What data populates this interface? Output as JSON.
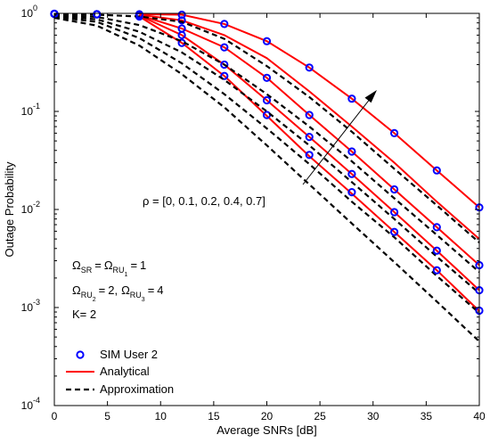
{
  "chart_data": {
    "type": "line",
    "xlabel": "Average SNRs [dB]",
    "ylabel": "Outage Probability",
    "xlim": [
      0,
      40
    ],
    "ylim": [
      0.0001,
      1
    ],
    "yscale": "log",
    "grid": false,
    "legend_position": "bottom-left",
    "x_ticks": [
      "0",
      "5",
      "10",
      "15",
      "20",
      "25",
      "30",
      "35",
      "40"
    ],
    "y_ticks": [
      {
        "base": "10",
        "exp": "0"
      },
      {
        "base": "10",
        "exp": "-1"
      },
      {
        "base": "10",
        "exp": "-2"
      },
      {
        "base": "10",
        "exp": "-3"
      },
      {
        "base": "10",
        "exp": "-4"
      }
    ],
    "legend": [
      {
        "label": "SIM User 2",
        "style": "marker",
        "color": "#0000ff"
      },
      {
        "label": "Analytical",
        "style": "solid",
        "color": "#ff0000"
      },
      {
        "label": "Approximation",
        "style": "dashed",
        "color": "#000000"
      }
    ],
    "annotations": {
      "rho": "ρ = [0, 0.1, 0.2, 0.4, 0.7]",
      "omega_line1": "Ω_SR = Ω_RU1 = 1",
      "omega_line2": "Ω_RU2 = 2, Ω_RU3 = 4",
      "k_line": "K= 2",
      "omega": {
        "sym": "Ω",
        "sub_sr": "SR",
        "eq": "=",
        "sub_ru": "RU",
        "sub_1": "1",
        "sub_2": "2",
        "sub_3": "3",
        "val1": "1",
        "val2": "2,",
        "val3": "4"
      }
    },
    "series": [
      {
        "rho": 0,
        "sim": {
          "x": [
            0,
            4,
            8,
            12
          ],
          "y": [
            0.99,
            0.98,
            0.93,
            0.5
          ]
        },
        "analytical": {
          "x": [
            8,
            12,
            16,
            20,
            24,
            28,
            32,
            36,
            40
          ],
          "y": [
            0.93,
            0.5,
            0.23,
            0.09,
            0.035,
            0.0145,
            0.0059,
            0.0024,
            0.00092
          ]
        },
        "approximation": {
          "x": [
            0,
            4,
            8,
            12,
            16,
            20,
            24,
            28,
            32,
            36,
            40
          ],
          "y": [
            0.9,
            0.75,
            0.47,
            0.24,
            0.11,
            0.045,
            0.018,
            0.0072,
            0.0029,
            0.00115,
            0.00045
          ]
        }
      },
      {
        "rho": 0.1,
        "sim": {
          "x": [
            0,
            4,
            8,
            12,
            16,
            20,
            24,
            28,
            32,
            36,
            40
          ],
          "y": [
            0.99,
            0.98,
            0.95,
            0.6,
            0.23,
            0.092,
            0.036,
            0.015,
            0.0059,
            0.0024,
            0.00093
          ]
        },
        "analytical": {
          "x": [
            8,
            12,
            16,
            20,
            24,
            28,
            32,
            36,
            40
          ],
          "y": [
            0.95,
            0.6,
            0.3,
            0.13,
            0.055,
            0.023,
            0.0094,
            0.0038,
            0.0015
          ]
        },
        "approximation": {
          "x": [
            0,
            4,
            8,
            12,
            16,
            20,
            24,
            28,
            32,
            36,
            40
          ],
          "y": [
            0.92,
            0.82,
            0.56,
            0.31,
            0.15,
            0.067,
            0.029,
            0.012,
            0.0052,
            0.0021,
            0.00088
          ]
        }
      },
      {
        "rho": 0.2,
        "sim": {
          "x": [
            0,
            4,
            8,
            12,
            16,
            20,
            24,
            28,
            32,
            36,
            40
          ],
          "y": [
            0.99,
            0.98,
            0.96,
            0.7,
            0.3,
            0.13,
            0.055,
            0.023,
            0.0094,
            0.0038,
            0.0015
          ]
        },
        "analytical": {
          "x": [
            8,
            12,
            16,
            20,
            24,
            28,
            32,
            36,
            40
          ],
          "y": [
            0.96,
            0.7,
            0.45,
            0.22,
            0.092,
            0.039,
            0.016,
            0.0066,
            0.0027
          ]
        },
        "approximation": {
          "x": [
            0,
            4,
            8,
            12,
            16,
            20,
            24,
            28,
            32,
            36,
            40
          ],
          "y": [
            0.94,
            0.87,
            0.65,
            0.4,
            0.21,
            0.1,
            0.045,
            0.019,
            0.008,
            0.0033,
            0.0014
          ]
        }
      },
      {
        "rho": 0.4,
        "sim": {
          "x": [
            0,
            4,
            8,
            12,
            16,
            20,
            24,
            28,
            32,
            36,
            40
          ],
          "y": [
            0.99,
            0.98,
            0.97,
            0.85,
            0.45,
            0.22,
            0.092,
            0.039,
            0.016,
            0.0066,
            0.0027
          ]
        },
        "analytical": {
          "x": [
            8,
            12,
            16,
            20,
            24,
            28,
            32,
            36,
            40
          ],
          "y": [
            0.97,
            0.85,
            0.6,
            0.35,
            0.16,
            0.07,
            0.03,
            0.012,
            0.005
          ]
        },
        "approximation": {
          "x": [
            0,
            4,
            8,
            12,
            16,
            20,
            24,
            28,
            32,
            36,
            40
          ],
          "y": [
            0.96,
            0.92,
            0.76,
            0.52,
            0.3,
            0.15,
            0.07,
            0.031,
            0.013,
            0.0055,
            0.0023
          ]
        }
      },
      {
        "rho": 0.7,
        "sim": {
          "x": [
            0,
            4,
            8,
            12,
            16,
            20,
            24,
            28,
            32,
            36,
            40
          ],
          "y": [
            0.99,
            0.98,
            0.98,
            0.97,
            0.78,
            0.52,
            0.28,
            0.135,
            0.06,
            0.025,
            0.0105
          ]
        },
        "analytical": {
          "x": [
            8,
            12,
            16,
            20,
            24,
            28,
            32,
            36,
            40
          ],
          "y": [
            0.98,
            0.97,
            0.78,
            0.52,
            0.28,
            0.135,
            0.06,
            0.025,
            0.0105
          ]
        },
        "approximation": {
          "x": [
            0,
            4,
            8,
            12,
            16,
            20,
            24,
            28,
            32,
            36,
            40
          ],
          "y": [
            0.98,
            0.97,
            0.93,
            0.82,
            0.55,
            0.29,
            0.14,
            0.062,
            0.026,
            0.011,
            0.0046
          ]
        }
      }
    ]
  }
}
